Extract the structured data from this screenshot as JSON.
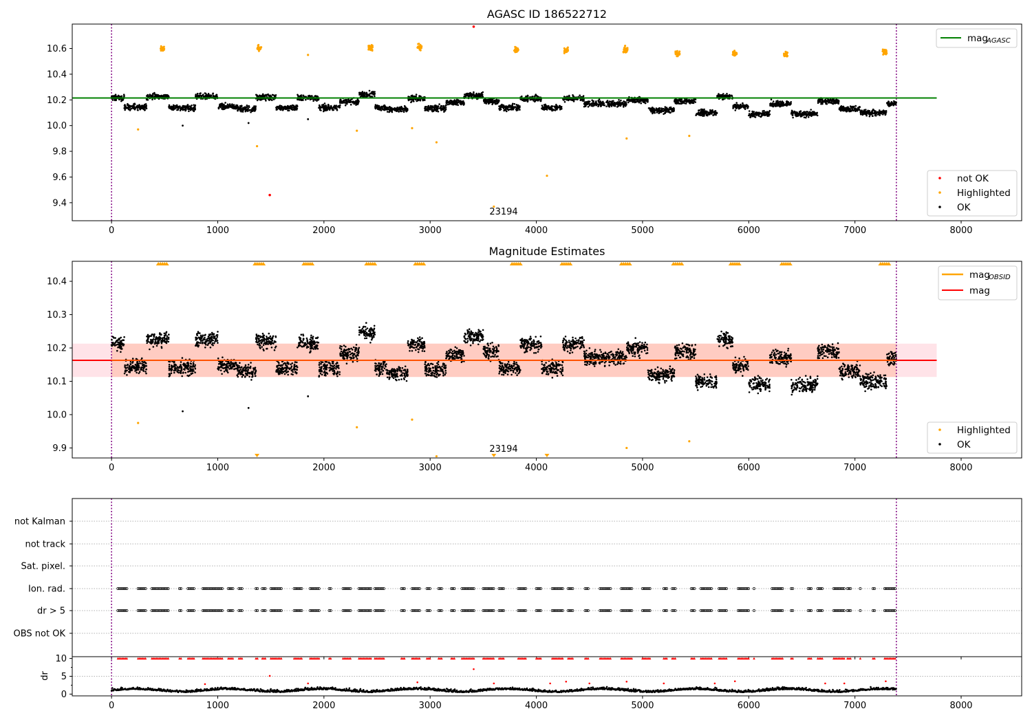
{
  "chart_data": [
    {
      "type": "scatter",
      "title": "AGASC ID 186522712",
      "xlim": [
        -370,
        8570
      ],
      "ylim": [
        9.26,
        10.79
      ],
      "xticks": [
        "0",
        "1000",
        "2000",
        "3000",
        "4000",
        "5000",
        "6000",
        "7000",
        "8000"
      ],
      "yticks": [
        "9.4",
        "9.6",
        "9.8",
        "10.0",
        "10.2",
        "10.4",
        "10.6"
      ],
      "annotation": {
        "text": "23194",
        "x": 3600,
        "y": 9.33
      },
      "vlines": [
        0,
        7390
      ],
      "reference_line": {
        "label": "mag",
        "subscript": "AGASC",
        "value": 10.215,
        "color": "#008000"
      },
      "ok_series": {
        "name": "OK",
        "color": "#000000",
        "baseline": 10.17,
        "segments": [
          [
            0,
            120,
            10.215
          ],
          [
            120,
            330,
            10.145
          ],
          [
            330,
            540,
            10.225
          ],
          [
            540,
            790,
            10.14
          ],
          [
            790,
            1000,
            10.225
          ],
          [
            1000,
            1180,
            10.15
          ],
          [
            1180,
            1360,
            10.13
          ],
          [
            1360,
            1550,
            10.22
          ],
          [
            1550,
            1750,
            10.14
          ],
          [
            1750,
            1950,
            10.215
          ],
          [
            1950,
            2150,
            10.14
          ],
          [
            2150,
            2330,
            10.185
          ],
          [
            2330,
            2480,
            10.245
          ],
          [
            2480,
            2590,
            10.14
          ],
          [
            2590,
            2790,
            10.125
          ],
          [
            2790,
            2950,
            10.21
          ],
          [
            2950,
            3150,
            10.135
          ],
          [
            3150,
            3320,
            10.18
          ],
          [
            3320,
            3500,
            10.235
          ],
          [
            3500,
            3650,
            10.19
          ],
          [
            3650,
            3850,
            10.14
          ],
          [
            3850,
            4050,
            10.21
          ],
          [
            4050,
            4250,
            10.14
          ],
          [
            4250,
            4450,
            10.21
          ],
          [
            4450,
            4850,
            10.17
          ],
          [
            4850,
            5050,
            10.2
          ],
          [
            5050,
            5300,
            10.12
          ],
          [
            5300,
            5500,
            10.19
          ],
          [
            5500,
            5700,
            10.1
          ],
          [
            5700,
            5850,
            10.225
          ],
          [
            5850,
            6000,
            10.15
          ],
          [
            6000,
            6200,
            10.09
          ],
          [
            6200,
            6400,
            10.17
          ],
          [
            6400,
            6650,
            10.09
          ],
          [
            6650,
            6850,
            10.19
          ],
          [
            6850,
            7050,
            10.13
          ],
          [
            7050,
            7300,
            10.1
          ],
          [
            7300,
            7390,
            10.17
          ]
        ]
      },
      "highlighted_clusters": {
        "name": "Highlighted",
        "color": "#ffa500",
        "points": [
          [
            480,
            10.6
          ],
          [
            1390,
            10.605
          ],
          [
            2440,
            10.61
          ],
          [
            2900,
            10.61
          ],
          [
            3810,
            10.585
          ],
          [
            4280,
            10.59
          ],
          [
            4840,
            10.59
          ],
          [
            5330,
            10.56
          ],
          [
            5870,
            10.56
          ],
          [
            6350,
            10.555
          ],
          [
            7280,
            10.575
          ]
        ]
      },
      "highlighted_outliers": [
        [
          250,
          9.97
        ],
        [
          1370,
          9.84
        ],
        [
          1850,
          10.55
        ],
        [
          2310,
          9.96
        ],
        [
          2830,
          9.98
        ],
        [
          3060,
          9.87
        ],
        [
          3600,
          9.37
        ],
        [
          4100,
          9.61
        ],
        [
          4850,
          9.9
        ],
        [
          5440,
          9.92
        ]
      ],
      "ok_outliers": [
        [
          670,
          10.0
        ],
        [
          1290,
          10.02
        ],
        [
          1850,
          10.05
        ]
      ],
      "not_ok": {
        "name": "not OK",
        "color": "#ff0000",
        "points": [
          [
            1490,
            9.46
          ],
          [
            3410,
            10.77
          ]
        ]
      },
      "legend_top": "top-right",
      "legend_bottom": "bottom-right"
    },
    {
      "type": "scatter",
      "title": "Magnitude Estimates",
      "xlim": [
        -370,
        8570
      ],
      "ylim": [
        9.87,
        10.46
      ],
      "xticks": [
        "0",
        "1000",
        "2000",
        "3000",
        "4000",
        "5000",
        "6000",
        "7000",
        "8000"
      ],
      "yticks": [
        "9.9",
        "10.0",
        "10.1",
        "10.2",
        "10.3",
        "10.4"
      ],
      "annotation": {
        "text": "23194",
        "x": 3600,
        "y": 9.89
      },
      "vlines": [
        0,
        7390
      ],
      "mag_line": {
        "label": "mag",
        "value": 10.163,
        "color": "#ff0000"
      },
      "mag_obsid": {
        "label": "mag",
        "subscript": "OBSID",
        "color": "#ffa500"
      },
      "band": {
        "x0": -370,
        "x1": 7770,
        "y0": 10.113,
        "y1": 10.213,
        "color": "#ffc0cb"
      },
      "band_obsid": {
        "x0": 0,
        "x1": 7390,
        "y0": 10.113,
        "y1": 10.213,
        "color": "#ffa07a"
      },
      "top_markers": [
        480,
        1390,
        1850,
        2440,
        2900,
        3810,
        4280,
        4840,
        5330,
        5870,
        6350,
        7280
      ],
      "bottom_markers": [
        1370,
        3600,
        4100
      ],
      "highlighted_outliers": [
        [
          250,
          9.975
        ],
        [
          2310,
          9.962
        ],
        [
          2830,
          9.985
        ],
        [
          3060,
          9.875
        ],
        [
          4850,
          9.9
        ],
        [
          5440,
          9.92
        ]
      ],
      "ok_outliers": [
        [
          670,
          10.01
        ],
        [
          1290,
          10.02
        ],
        [
          1850,
          10.055
        ]
      ],
      "legend_top": "top-right",
      "legend_bottom": "bottom-right"
    },
    {
      "type": "scatter",
      "xlim": [
        -370,
        8570
      ],
      "categories": [
        "not Kalman",
        "not track",
        "Sat. pixel.",
        "Ion. rad.",
        "dr > 5",
        "OBS not OK"
      ],
      "vlines": [
        0,
        7390
      ],
      "flag_rows": [
        "Ion. rad.",
        "dr > 5"
      ],
      "flag_clusters": [
        [
          60,
          150
        ],
        [
          250,
          320
        ],
        [
          380,
          540
        ],
        [
          640,
          660
        ],
        [
          720,
          780
        ],
        [
          860,
          1050
        ],
        [
          1100,
          1150
        ],
        [
          1200,
          1230
        ],
        [
          1360,
          1380
        ],
        [
          1420,
          1450
        ],
        [
          1500,
          1600
        ],
        [
          1720,
          1800
        ],
        [
          1870,
          1960
        ],
        [
          2050,
          2070
        ],
        [
          2180,
          2250
        ],
        [
          2330,
          2450
        ],
        [
          2480,
          2570
        ],
        [
          2730,
          2760
        ],
        [
          2830,
          2900
        ],
        [
          2970,
          3000
        ],
        [
          3080,
          3120
        ],
        [
          3200,
          3230
        ],
        [
          3300,
          3420
        ],
        [
          3500,
          3600
        ],
        [
          3650,
          3700
        ],
        [
          3830,
          3900
        ],
        [
          4000,
          4050
        ],
        [
          4150,
          4250
        ],
        [
          4300,
          4350
        ],
        [
          4460,
          4500
        ],
        [
          4600,
          4700
        ],
        [
          4800,
          4900
        ],
        [
          5000,
          5080
        ],
        [
          5200,
          5230
        ],
        [
          5280,
          5320
        ],
        [
          5460,
          5500
        ],
        [
          5550,
          5650
        ],
        [
          5720,
          5800
        ],
        [
          5900,
          6000
        ],
        [
          6050,
          6060
        ],
        [
          6220,
          6320
        ],
        [
          6400,
          6420
        ],
        [
          6560,
          6600
        ],
        [
          6650,
          6700
        ],
        [
          6800,
          6900
        ],
        [
          6930,
          6960
        ],
        [
          7050,
          7060
        ],
        [
          7170,
          7190
        ],
        [
          7280,
          7390
        ]
      ]
    },
    {
      "type": "scatter",
      "ylabel": "dr",
      "xlim": [
        -370,
        8570
      ],
      "ylim": [
        -0.5,
        10.5
      ],
      "xticks": [
        "0",
        "1000",
        "2000",
        "3000",
        "4000",
        "5000",
        "6000",
        "7000",
        "8000"
      ],
      "yticks": [
        "0",
        "5",
        "10"
      ],
      "vlines": [
        0,
        7390
      ],
      "baseline": 0.9,
      "red_spikes": [
        [
          880,
          2.8
        ],
        [
          1490,
          5.1
        ],
        [
          1850,
          3.0
        ],
        [
          2880,
          3.3
        ],
        [
          3410,
          7.0
        ],
        [
          3600,
          3.0
        ],
        [
          4130,
          3.0
        ],
        [
          4280,
          3.5
        ],
        [
          4500,
          3.0
        ],
        [
          4850,
          3.5
        ],
        [
          5200,
          3.0
        ],
        [
          5680,
          3.0
        ],
        [
          5870,
          3.6
        ],
        [
          6720,
          3.0
        ],
        [
          6900,
          3.0
        ],
        [
          7290,
          3.6
        ]
      ]
    }
  ],
  "legend": {
    "not_ok": "not OK",
    "highlighted": "Highlighted",
    "ok": "OK",
    "mag": "mag",
    "sub_agasc": "AGASC",
    "sub_obsid": "OBSID"
  }
}
